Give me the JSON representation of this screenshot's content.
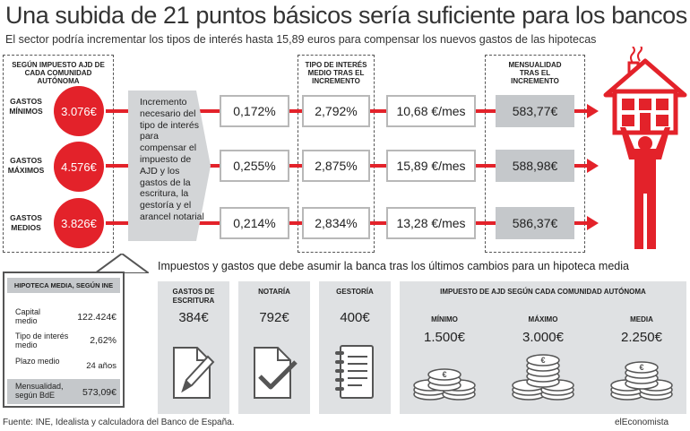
{
  "header": {
    "title": "Una subida de 21 puntos básicos sería suficiente para los bancos",
    "subtitle": "El sector podría incrementar los tipos de interés hasta 15,89 euros para compensar los nuevos gastos de las hipotecas"
  },
  "columns": {
    "ajd": "SEGÚN IMPUESTO AJD DE CADA COMUNIDAD AUTÓNOMA",
    "tipo": "TIPO DE INTERÉS MEDIO TRAS EL INCREMENTO",
    "mensualidad": "MENSUALIDAD TRAS EL INCREMENTO"
  },
  "increment_note": "Incremento necesario del tipo de interés para compensar el impuesto de AJD y los gastos de la escritura, la gestoría y el arancel notarial",
  "rows": [
    {
      "label": "GASTOS MÍNIMOS",
      "amount": "3.076€",
      "increment": "0,172%",
      "rate": "2,792%",
      "monthly_increase": "10,68 €/mes",
      "payment": "583,77€"
    },
    {
      "label": "GASTOS MÁXIMOS",
      "amount": "4.576€",
      "increment": "0,255%",
      "rate": "2,875%",
      "monthly_increase": "15,89 €/mes",
      "payment": "588,98€"
    },
    {
      "label": "GASTOS MEDIOS",
      "amount": "3.826€",
      "increment": "0,214%",
      "rate": "2,834%",
      "monthly_increase": "13,28 €/mes",
      "payment": "586,37€"
    }
  ],
  "mortgage_panel": {
    "title": "HIPOTECA MEDIA, SEGÚN INE",
    "items": [
      {
        "label": "Capital medio",
        "value": "122.424€"
      },
      {
        "label": "Tipo de interés medio",
        "value": "2,62%"
      },
      {
        "label": "Plazo medio",
        "value": "24 años"
      },
      {
        "label": "Mensualidad, según BdE",
        "value": "573,09€"
      }
    ]
  },
  "costs": {
    "title": "Impuestos y gastos que debe asumir la banca tras los últimos cambios para un hipoteca media",
    "items": [
      {
        "label": "GASTOS DE ESCRITURA",
        "value": "384€",
        "icon": "pencil-document-icon"
      },
      {
        "label": "NOTARÍA",
        "value": "792€",
        "icon": "checkmark-document-icon"
      },
      {
        "label": "GESTORÍA",
        "value": "400€",
        "icon": "notebook-icon"
      }
    ],
    "ajd": {
      "title": "IMPUESTO DE AJD SEGÚN CADA COMUNIDAD AUTÓNOMA",
      "items": [
        {
          "label": "MÍNIMO",
          "value": "1.500€",
          "icon": "coins-stack-icon"
        },
        {
          "label": "MÁXIMO",
          "value": "3.000€",
          "icon": "coins-stack-icon"
        },
        {
          "label": "MEDIA",
          "value": "2.250€",
          "icon": "coins-stack-icon"
        }
      ]
    }
  },
  "footer": {
    "source": "Fuente: INE, Idealista y calculadora del Banco de España.",
    "brand": "elEconomista"
  },
  "colors": {
    "accent": "#e3222a",
    "grey_box": "#c5c8cb",
    "light_grey": "#dfe1e3"
  }
}
